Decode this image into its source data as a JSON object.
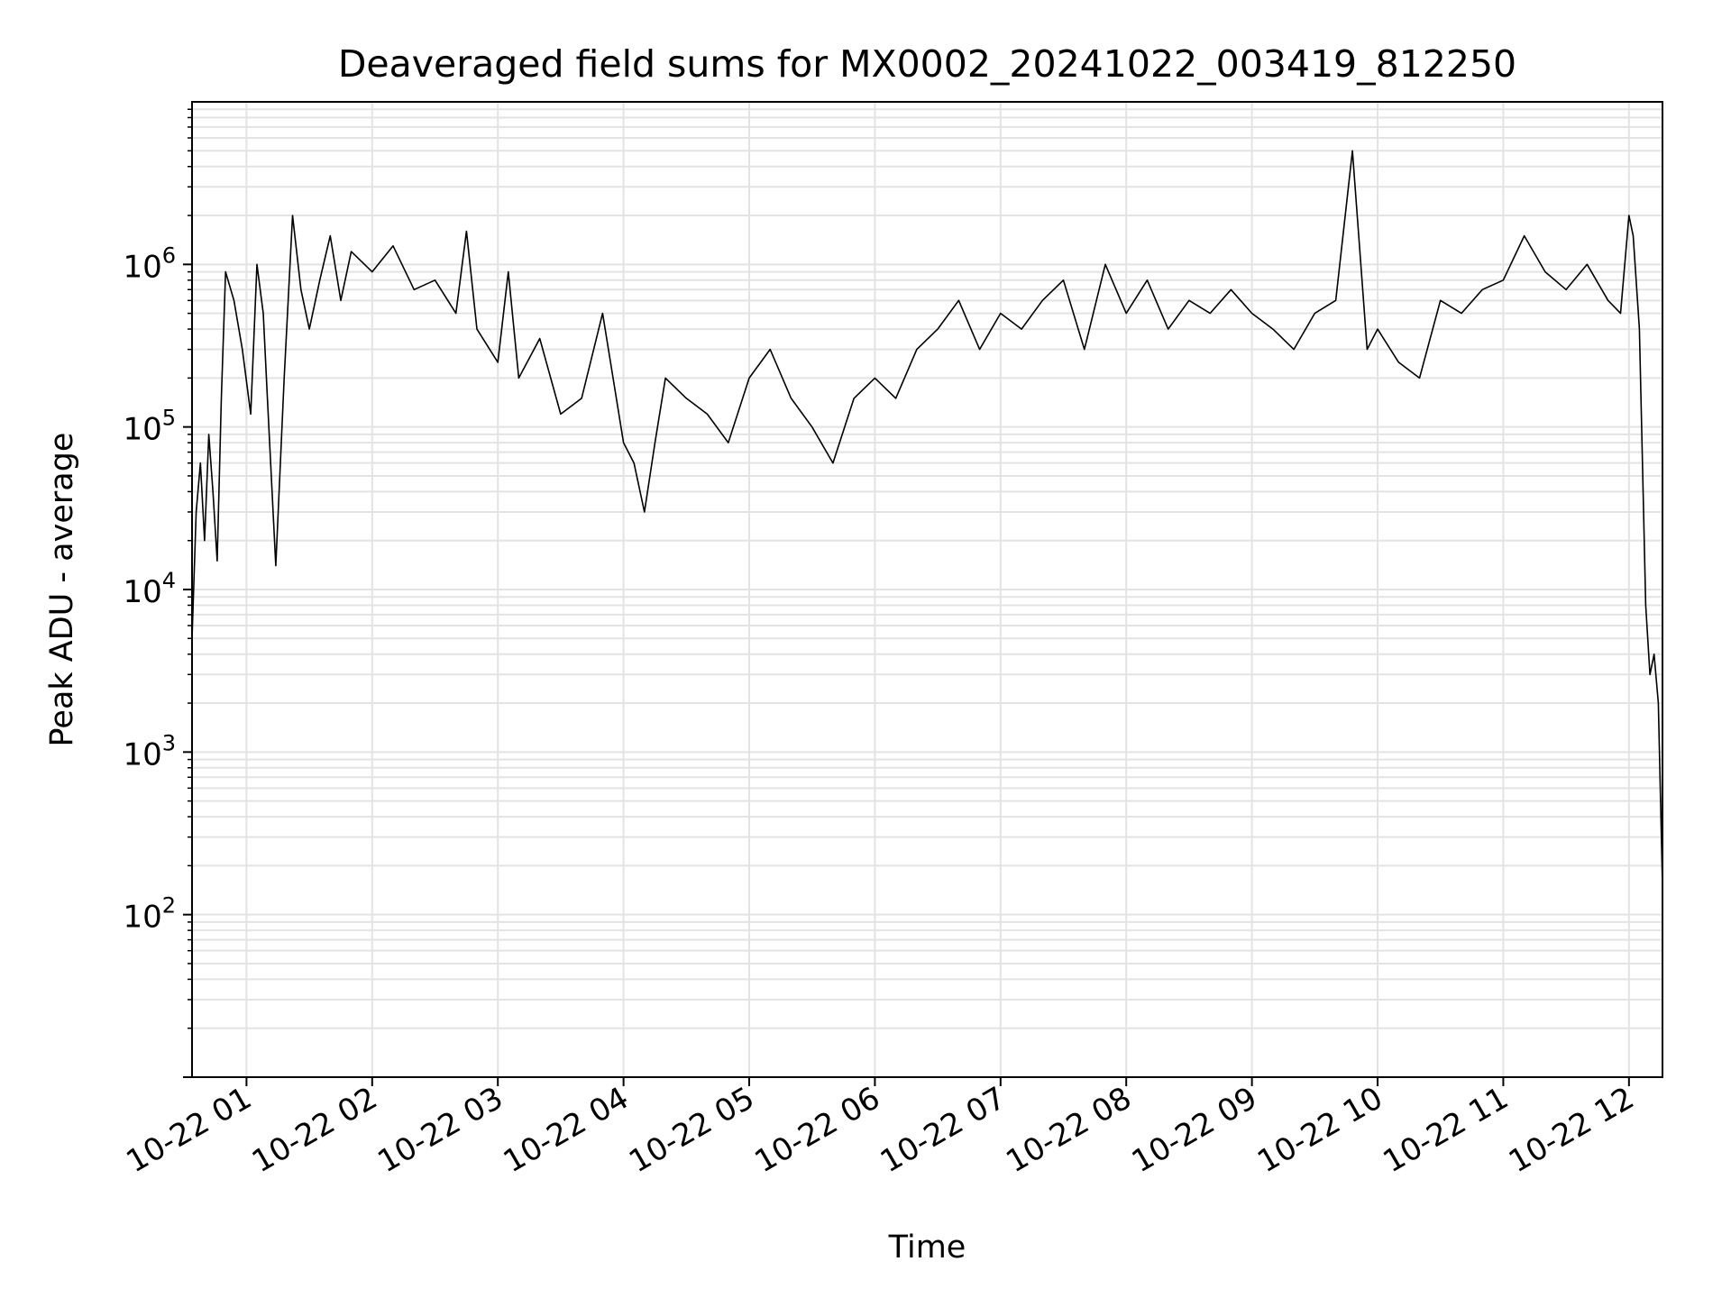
{
  "chart_data": {
    "type": "line",
    "title": "Deaveraged field sums for MX0002_20241022_003419_812250",
    "xlabel": "Time",
    "ylabel": "Peak ADU - average",
    "yscale": "log",
    "ylim": [
      10,
      10000000
    ],
    "xlim": [
      "10-22 00:34",
      "10-22 12:16"
    ],
    "grid": true,
    "line_color": "#000000",
    "x_ticks": [
      "10-22 01",
      "10-22 02",
      "10-22 03",
      "10-22 04",
      "10-22 05",
      "10-22 06",
      "10-22 07",
      "10-22 08",
      "10-22 09",
      "10-22 10",
      "10-22 11",
      "10-22 12"
    ],
    "y_ticks": [
      {
        "value": 100,
        "base": "10",
        "exp": "2"
      },
      {
        "value": 1000,
        "base": "10",
        "exp": "3"
      },
      {
        "value": 10000,
        "base": "10",
        "exp": "4"
      },
      {
        "value": 100000,
        "base": "10",
        "exp": "5"
      },
      {
        "value": 1000000,
        "base": "10",
        "exp": "6"
      }
    ],
    "series": [
      {
        "x": [
          "10-22 00:34",
          "10-22 00:36",
          "10-22 00:38",
          "10-22 00:40",
          "10-22 00:42",
          "10-22 00:44",
          "10-22 00:46",
          "10-22 00:48",
          "10-22 00:50",
          "10-22 00:54",
          "10-22 00:58",
          "10-22 01:02",
          "10-22 01:05",
          "10-22 01:08",
          "10-22 01:10",
          "10-22 01:14",
          "10-22 01:18",
          "10-22 01:22",
          "10-22 01:26",
          "10-22 01:30",
          "10-22 01:35",
          "10-22 01:40",
          "10-22 01:45",
          "10-22 01:50",
          "10-22 02:00",
          "10-22 02:10",
          "10-22 02:20",
          "10-22 02:30",
          "10-22 02:40",
          "10-22 02:45",
          "10-22 02:50",
          "10-22 03:00",
          "10-22 03:05",
          "10-22 03:10",
          "10-22 03:20",
          "10-22 03:30",
          "10-22 03:40",
          "10-22 03:50",
          "10-22 04:00",
          "10-22 04:05",
          "10-22 04:10",
          "10-22 04:15",
          "10-22 04:20",
          "10-22 04:30",
          "10-22 04:40",
          "10-22 04:50",
          "10-22 05:00",
          "10-22 05:10",
          "10-22 05:20",
          "10-22 05:30",
          "10-22 05:40",
          "10-22 05:50",
          "10-22 06:00",
          "10-22 06:10",
          "10-22 06:20",
          "10-22 06:30",
          "10-22 06:40",
          "10-22 06:50",
          "10-22 07:00",
          "10-22 07:10",
          "10-22 07:20",
          "10-22 07:30",
          "10-22 07:40",
          "10-22 07:50",
          "10-22 08:00",
          "10-22 08:10",
          "10-22 08:20",
          "10-22 08:30",
          "10-22 08:40",
          "10-22 08:50",
          "10-22 09:00",
          "10-22 09:10",
          "10-22 09:20",
          "10-22 09:30",
          "10-22 09:40",
          "10-22 09:48",
          "10-22 09:55",
          "10-22 10:00",
          "10-22 10:10",
          "10-22 10:20",
          "10-22 10:30",
          "10-22 10:40",
          "10-22 10:50",
          "10-22 11:00",
          "10-22 11:10",
          "10-22 11:20",
          "10-22 11:30",
          "10-22 11:40",
          "10-22 11:50",
          "10-22 11:56",
          "10-22 12:00",
          "10-22 12:02",
          "10-22 12:05",
          "10-22 12:08",
          "10-22 12:10",
          "10-22 12:12",
          "10-22 12:14",
          "10-22 12:16"
        ],
        "y": [
          5000,
          30000,
          60000,
          20000,
          90000,
          40000,
          15000,
          150000,
          900000,
          600000,
          300000,
          120000,
          1000000,
          500000,
          150000,
          14000,
          200000,
          2000000,
          700000,
          400000,
          800000,
          1500000,
          600000,
          1200000,
          900000,
          1300000,
          700000,
          800000,
          500000,
          1600000,
          400000,
          250000,
          900000,
          200000,
          350000,
          120000,
          150000,
          500000,
          80000,
          60000,
          30000,
          80000,
          200000,
          150000,
          120000,
          80000,
          200000,
          300000,
          150000,
          100000,
          60000,
          150000,
          200000,
          150000,
          300000,
          400000,
          600000,
          300000,
          500000,
          400000,
          600000,
          800000,
          300000,
          1000000,
          500000,
          800000,
          400000,
          600000,
          500000,
          700000,
          500000,
          400000,
          300000,
          500000,
          600000,
          5000000,
          300000,
          400000,
          250000,
          200000,
          600000,
          500000,
          700000,
          800000,
          1500000,
          900000,
          700000,
          1000000,
          600000,
          500000,
          2000000,
          1500000,
          400000,
          8000,
          3000,
          4000,
          2000,
          150
        ]
      }
    ]
  }
}
